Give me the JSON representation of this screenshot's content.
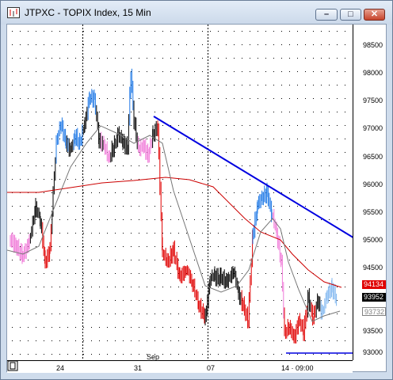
{
  "window": {
    "title": "JTPXC - TOPIX Index, 15 Min",
    "buttons": {
      "minimize": "–",
      "maximize": "□",
      "close": "✕"
    }
  },
  "axis": {
    "y_ticks": [
      "98500",
      "98000",
      "97500",
      "97000",
      "96500",
      "96000",
      "95500",
      "95000",
      "94500",
      "94000",
      "93500",
      "93000"
    ],
    "x_ticks": [
      "24",
      "31",
      "07",
      "14 · 09:00"
    ],
    "month_label": "Sep"
  },
  "price_labels": {
    "red": {
      "text": "94134",
      "color": "#e00000"
    },
    "black": {
      "text": "93952",
      "color": "#000000"
    },
    "gray": {
      "text": "93732",
      "color": "#808080"
    }
  },
  "colors": {
    "up_strong": "#1e78e6",
    "up_light": "#7fb6f0",
    "down_strong": "#e00000",
    "down_light": "#f07ad8",
    "neutral": "#000000",
    "trendline": "#0000e0",
    "ma_slow": "#cc0000",
    "ma_fast": "#777777"
  },
  "icons": {
    "app": "chart-window-icon"
  }
}
